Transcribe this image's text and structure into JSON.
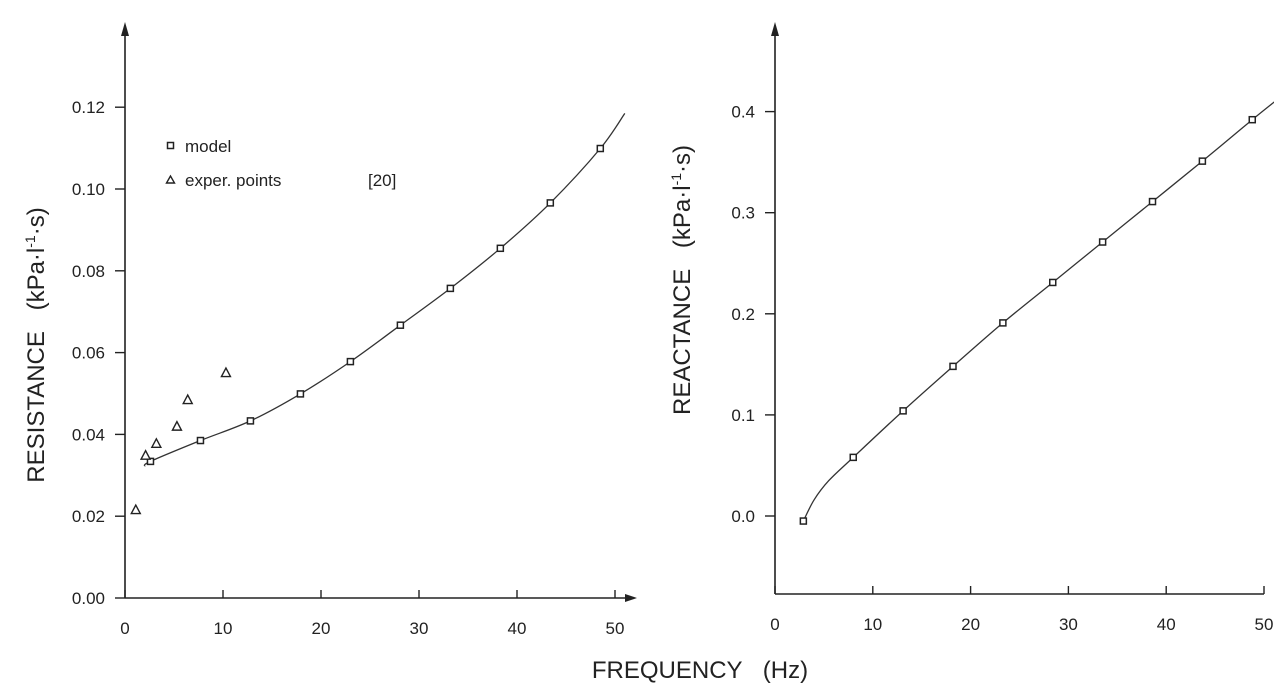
{
  "chart_data": [
    {
      "type": "scatter",
      "ylabel_main": "RESISTANCE",
      "ylabel_unit_prefix": "(kPa·l",
      "ylabel_unit_sup": "-1",
      "ylabel_unit_suffix": "·s)",
      "xlim": [
        0,
        52
      ],
      "ylim": [
        0,
        0.14
      ],
      "x_ticks": [
        0,
        10,
        20,
        30,
        40,
        50
      ],
      "x_tick_labels": [
        "0",
        "10",
        "20",
        "30",
        "40",
        "50"
      ],
      "y_ticks": [
        0.0,
        0.02,
        0.04,
        0.06,
        0.08,
        0.1,
        0.12
      ],
      "y_tick_labels": [
        "0.00",
        "0.02",
        "0.04",
        "0.06",
        "0.08",
        "0.10",
        "0.12"
      ],
      "legend": {
        "position": "top-left",
        "entries": [
          {
            "marker": "square",
            "label": "model"
          },
          {
            "marker": "triangle",
            "label": "exper. points",
            "ref": "[20]"
          }
        ]
      },
      "series": [
        {
          "name": "model",
          "marker": "square",
          "x": [
            2.6,
            7.7,
            12.8,
            17.9,
            23.0,
            28.1,
            33.2,
            38.3,
            43.4,
            48.5
          ],
          "y": [
            0.0334,
            0.0385,
            0.0433,
            0.0499,
            0.0578,
            0.0667,
            0.0757,
            0.0855,
            0.0966,
            0.1099
          ]
        },
        {
          "name": "exper. points",
          "marker": "triangle",
          "x": [
            1.1,
            2.1,
            3.2,
            5.3,
            6.4,
            10.3
          ],
          "y": [
            0.0215,
            0.0348,
            0.0377,
            0.0419,
            0.0484,
            0.055
          ]
        }
      ],
      "curve": {
        "x": [
          2.0,
          2.6,
          7.7,
          12.8,
          17.9,
          23.0,
          28.1,
          33.2,
          38.3,
          43.4,
          48.5,
          51.0
        ],
        "y": [
          0.0322,
          0.0334,
          0.0385,
          0.0433,
          0.0499,
          0.0578,
          0.0667,
          0.0757,
          0.0855,
          0.0966,
          0.1099,
          0.1185
        ]
      }
    },
    {
      "type": "scatter",
      "ylabel_main": "REACTANCE",
      "ylabel_unit_prefix": "(kPa·l",
      "ylabel_unit_sup": "-1",
      "ylabel_unit_suffix": "·s)",
      "xlim": [
        0,
        52
      ],
      "ylim": [
        -0.08,
        0.46
      ],
      "x_ticks": [
        0,
        10,
        20,
        30,
        40,
        50
      ],
      "x_tick_labels": [
        "0",
        "10",
        "20",
        "30",
        "40",
        "50"
      ],
      "y_ticks": [
        0.0,
        0.1,
        0.2,
        0.3,
        0.4
      ],
      "y_tick_labels": [
        "0.0",
        "0.1",
        "0.2",
        "0.3",
        "0.4"
      ],
      "series": [
        {
          "name": "model",
          "marker": "square",
          "x": [
            2.9,
            8.0,
            13.1,
            18.2,
            23.3,
            28.4,
            33.5,
            38.6,
            43.7,
            48.8
          ],
          "y": [
            -0.005,
            0.058,
            0.104,
            0.148,
            0.191,
            0.231,
            0.271,
            0.311,
            0.351,
            0.392
          ]
        }
      ],
      "curve": {
        "x": [
          2.9,
          4.0,
          5.5,
          8.0,
          13.1,
          18.2,
          23.3,
          28.4,
          33.5,
          38.6,
          43.7,
          48.8,
          51.5
        ],
        "y": [
          -0.005,
          0.016,
          0.035,
          0.058,
          0.104,
          0.148,
          0.191,
          0.231,
          0.271,
          0.311,
          0.351,
          0.392,
          0.413
        ]
      }
    }
  ],
  "xlabel_main": "FREQUENCY",
  "xlabel_unit": "(Hz)",
  "legend_labels": {
    "model": "model",
    "exper": "exper. points",
    "ref": "[20]"
  }
}
